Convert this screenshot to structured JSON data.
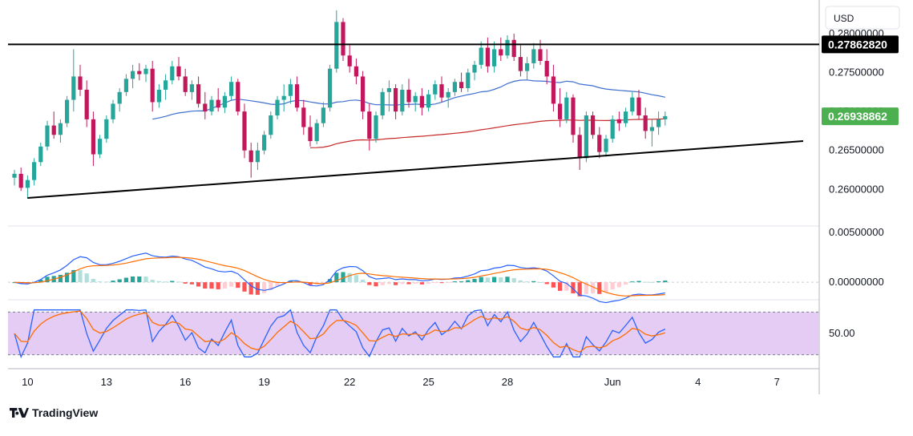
{
  "header": {
    "currency_label": "USD"
  },
  "footer": {
    "brand": "TradingView"
  },
  "colors": {
    "up": "#26a69a",
    "down": "#c2185b",
    "sma_fast": "#3d6fcf",
    "sma_slow": "#c62828",
    "trendline": "#000000",
    "price_badge": "#4caf50",
    "level_badge": "#000000",
    "rsi_band": "#e5ccf4",
    "macd_line": "#2962ff",
    "signal_line": "#ff6d00"
  },
  "chart_data": [
    {
      "type": "candlestick",
      "pane": "price",
      "y_ticks": [
        "0.28000000",
        "0.27500000",
        "0.27000000",
        "0.26500000",
        "0.26000000"
      ],
      "y_tick_values": [
        0.28,
        0.275,
        0.27,
        0.265,
        0.26
      ],
      "x_ticks": [
        "10",
        "13",
        "16",
        "19",
        "22",
        "25",
        "28",
        "Jun",
        "4",
        "7"
      ],
      "ylim": [
        0.2555,
        0.2835
      ],
      "resistance_level": 0.2786282,
      "resistance_label": "0.27862820",
      "last_price": 0.26938862,
      "last_price_label": "0.26938862",
      "support_trendline": {
        "from": {
          "i": 2,
          "y": 0.2589
        },
        "to": {
          "i": 120,
          "y": 0.2662
        }
      },
      "candles": [
        [
          0.2615,
          0.2625,
          0.2605,
          0.262
        ],
        [
          0.262,
          0.2628,
          0.2598,
          0.2602
        ],
        [
          0.2602,
          0.2618,
          0.2588,
          0.2612
        ],
        [
          0.2612,
          0.264,
          0.2605,
          0.2635
        ],
        [
          0.2635,
          0.266,
          0.263,
          0.2655
        ],
        [
          0.2655,
          0.2688,
          0.265,
          0.2682
        ],
        [
          0.2682,
          0.27,
          0.2665,
          0.267
        ],
        [
          0.267,
          0.269,
          0.266,
          0.2685
        ],
        [
          0.2685,
          0.272,
          0.268,
          0.2715
        ],
        [
          0.2715,
          0.278,
          0.27,
          0.2745
        ],
        [
          0.2745,
          0.276,
          0.272,
          0.2728
        ],
        [
          0.2728,
          0.274,
          0.268,
          0.269
        ],
        [
          0.269,
          0.27,
          0.263,
          0.2645
        ],
        [
          0.2645,
          0.267,
          0.264,
          0.2665
        ],
        [
          0.2665,
          0.2695,
          0.266,
          0.269
        ],
        [
          0.269,
          0.2715,
          0.2685,
          0.271
        ],
        [
          0.271,
          0.273,
          0.27,
          0.2725
        ],
        [
          0.2725,
          0.2748,
          0.272,
          0.2742
        ],
        [
          0.2742,
          0.276,
          0.273,
          0.2752
        ],
        [
          0.2752,
          0.2762,
          0.274,
          0.2748
        ],
        [
          0.2748,
          0.276,
          0.2738,
          0.2755
        ],
        [
          0.2755,
          0.2765,
          0.27,
          0.2712
        ],
        [
          0.2712,
          0.2735,
          0.2705,
          0.2728
        ],
        [
          0.2728,
          0.2748,
          0.2715,
          0.274
        ],
        [
          0.274,
          0.2765,
          0.2735,
          0.2758
        ],
        [
          0.2758,
          0.277,
          0.274,
          0.2745
        ],
        [
          0.2745,
          0.2755,
          0.272,
          0.2725
        ],
        [
          0.2725,
          0.274,
          0.2715,
          0.2735
        ],
        [
          0.2735,
          0.2745,
          0.2705,
          0.271
        ],
        [
          0.271,
          0.2725,
          0.269,
          0.27
        ],
        [
          0.27,
          0.272,
          0.2695,
          0.2715
        ],
        [
          0.2715,
          0.273,
          0.27,
          0.2705
        ],
        [
          0.2705,
          0.2725,
          0.2698,
          0.272
        ],
        [
          0.272,
          0.2745,
          0.2715,
          0.2738
        ],
        [
          0.2738,
          0.2742,
          0.2695,
          0.27
        ],
        [
          0.27,
          0.271,
          0.264,
          0.265
        ],
        [
          0.265,
          0.266,
          0.2615,
          0.2635
        ],
        [
          0.2635,
          0.266,
          0.2625,
          0.265
        ],
        [
          0.265,
          0.2675,
          0.2645,
          0.267
        ],
        [
          0.267,
          0.27,
          0.2665,
          0.2695
        ],
        [
          0.2695,
          0.272,
          0.269,
          0.2715
        ],
        [
          0.2715,
          0.2735,
          0.27,
          0.272
        ],
        [
          0.272,
          0.2742,
          0.271,
          0.2735
        ],
        [
          0.2735,
          0.2745,
          0.27,
          0.2705
        ],
        [
          0.2705,
          0.2715,
          0.267,
          0.268
        ],
        [
          0.268,
          0.2695,
          0.2655,
          0.2662
        ],
        [
          0.2662,
          0.269,
          0.2658,
          0.2685
        ],
        [
          0.2685,
          0.2712,
          0.268,
          0.2705
        ],
        [
          0.2705,
          0.276,
          0.27,
          0.2755
        ],
        [
          0.2755,
          0.283,
          0.275,
          0.2815
        ],
        [
          0.2815,
          0.282,
          0.2765,
          0.2772
        ],
        [
          0.2772,
          0.2785,
          0.275,
          0.2758
        ],
        [
          0.2758,
          0.2768,
          0.2735,
          0.2745
        ],
        [
          0.2745,
          0.2752,
          0.269,
          0.27
        ],
        [
          0.27,
          0.271,
          0.265,
          0.2665
        ],
        [
          0.2665,
          0.27,
          0.266,
          0.2695
        ],
        [
          0.2695,
          0.273,
          0.269,
          0.2725
        ],
        [
          0.2725,
          0.274,
          0.27,
          0.273
        ],
        [
          0.273,
          0.2735,
          0.269,
          0.27
        ],
        [
          0.27,
          0.2735,
          0.2695,
          0.2728
        ],
        [
          0.2728,
          0.2742,
          0.2705,
          0.2712
        ],
        [
          0.2712,
          0.2725,
          0.27,
          0.272
        ],
        [
          0.272,
          0.273,
          0.2695,
          0.2705
        ],
        [
          0.2705,
          0.2728,
          0.27,
          0.2722
        ],
        [
          0.2722,
          0.274,
          0.2715,
          0.2735
        ],
        [
          0.2735,
          0.2745,
          0.2712,
          0.2718
        ],
        [
          0.2718,
          0.273,
          0.2705,
          0.2725
        ],
        [
          0.2725,
          0.2742,
          0.272,
          0.2738
        ],
        [
          0.2738,
          0.275,
          0.2725,
          0.273
        ],
        [
          0.273,
          0.2755,
          0.2725,
          0.275
        ],
        [
          0.275,
          0.2765,
          0.274,
          0.276
        ],
        [
          0.276,
          0.279,
          0.2755,
          0.2782
        ],
        [
          0.2782,
          0.2795,
          0.275,
          0.2758
        ],
        [
          0.2758,
          0.279,
          0.275,
          0.278
        ],
        [
          0.278,
          0.2795,
          0.2765,
          0.2772
        ],
        [
          0.2772,
          0.2798,
          0.2768,
          0.2792
        ],
        [
          0.2792,
          0.28,
          0.2765,
          0.277
        ],
        [
          0.277,
          0.2785,
          0.2745,
          0.2752
        ],
        [
          0.2752,
          0.277,
          0.274,
          0.2762
        ],
        [
          0.2762,
          0.2788,
          0.2755,
          0.278
        ],
        [
          0.278,
          0.2792,
          0.276,
          0.2765
        ],
        [
          0.2765,
          0.278,
          0.2735,
          0.2745
        ],
        [
          0.2745,
          0.276,
          0.27,
          0.271
        ],
        [
          0.271,
          0.273,
          0.268,
          0.269
        ],
        [
          0.269,
          0.2725,
          0.2685,
          0.2718
        ],
        [
          0.2718,
          0.2722,
          0.266,
          0.267
        ],
        [
          0.267,
          0.268,
          0.2625,
          0.264
        ],
        [
          0.264,
          0.27,
          0.2635,
          0.2695
        ],
        [
          0.2695,
          0.27,
          0.2665,
          0.267
        ],
        [
          0.267,
          0.268,
          0.264,
          0.2648
        ],
        [
          0.2648,
          0.267,
          0.2642,
          0.2665
        ],
        [
          0.2665,
          0.2695,
          0.266,
          0.269
        ],
        [
          0.269,
          0.27,
          0.2675,
          0.2685
        ],
        [
          0.2685,
          0.2705,
          0.268,
          0.27
        ],
        [
          0.27,
          0.2725,
          0.2695,
          0.2718
        ],
        [
          0.2718,
          0.2728,
          0.269,
          0.2695
        ],
        [
          0.2695,
          0.2705,
          0.2665,
          0.2675
        ],
        [
          0.2675,
          0.269,
          0.2655,
          0.268
        ],
        [
          0.268,
          0.27,
          0.267,
          0.269
        ],
        [
          0.269,
          0.27,
          0.2682,
          0.2694
        ]
      ],
      "sma_fast_start": 21,
      "sma_slow_start": 45
    },
    {
      "type": "macd",
      "pane": "macd",
      "y_ticks": [
        "0.00500000",
        "0.00000000"
      ],
      "y_tick_values": [
        0.005,
        0.0
      ],
      "ylim": [
        -0.0016,
        0.0055
      ]
    },
    {
      "type": "rsi",
      "pane": "rsi",
      "y_ticks": [
        "50.00"
      ],
      "y_tick_values": [
        50
      ],
      "band": [
        30,
        70
      ],
      "ylim": [
        20,
        80
      ]
    }
  ]
}
